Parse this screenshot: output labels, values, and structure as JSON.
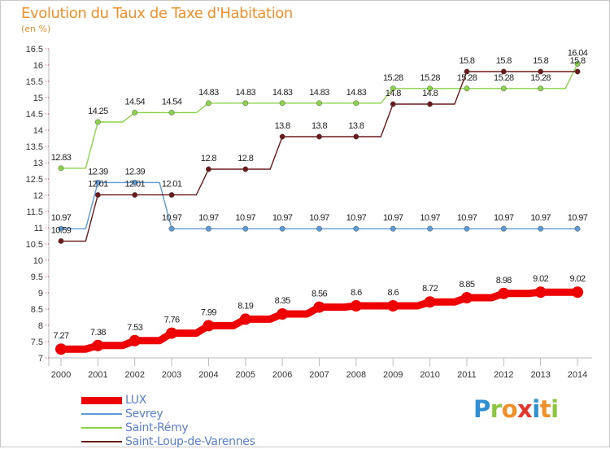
{
  "title": "Evolution du Taux de Taxe d'Habitation",
  "unit": "(en %)",
  "brand": {
    "letters": [
      "P",
      "r",
      "o",
      "x",
      "i",
      "t",
      "i"
    ],
    "colors": [
      "#2f8fd0",
      "#8cc63f",
      "#f0902a",
      "#e0362c",
      "#2f8fd0",
      "#f0902a",
      "#8cc63f"
    ]
  },
  "chart_data": {
    "type": "line",
    "x": [
      "2000",
      "2001",
      "2002",
      "2003",
      "2004",
      "2005",
      "2006",
      "2007",
      "2008",
      "2009",
      "2010",
      "2011",
      "2012",
      "2013",
      "2014"
    ],
    "ylim": [
      7,
      16.5
    ],
    "yticks": [
      "7",
      "7.5",
      "8",
      "8.5",
      "9",
      "9.5",
      "10",
      "10.5",
      "11",
      "11.5",
      "12",
      "12.5",
      "13",
      "13.5",
      "14",
      "14.5",
      "15",
      "15.5",
      "16",
      "16.5"
    ],
    "grid": false,
    "legend_position": "bottom-left",
    "series": [
      {
        "name": "LUX",
        "color": "#ee0000",
        "values": [
          7.27,
          7.38,
          7.53,
          7.76,
          7.99,
          8.19,
          8.35,
          8.56,
          8.6,
          8.6,
          8.72,
          8.85,
          8.98,
          9.02,
          9.02
        ],
        "labels": [
          "7.27",
          "7.38",
          "7.53",
          "7.76",
          "7.99",
          "8.19",
          "8.35",
          "8.56",
          "8.6",
          "8.6",
          "8.72",
          "8.85",
          "8.98",
          "9.02",
          "9.02"
        ]
      },
      {
        "name": "Sevrey",
        "color": "#5b9bd5",
        "values": [
          10.97,
          12.39,
          12.39,
          10.97,
          10.97,
          10.97,
          10.97,
          10.97,
          10.97,
          10.97,
          10.97,
          10.97,
          10.97,
          10.97,
          10.97
        ],
        "labels": [
          "10.97",
          "12.39",
          "12.39",
          "10.97",
          "10.97",
          "10.97",
          "10.97",
          "10.97",
          "10.97",
          "10.97",
          "10.97",
          "10.97",
          "10.97",
          "10.97",
          "10.97"
        ]
      },
      {
        "name": "Saint-Rémy",
        "color": "#8cd24b",
        "values": [
          12.83,
          14.25,
          14.54,
          14.54,
          14.83,
          14.83,
          14.83,
          14.83,
          14.83,
          15.28,
          15.28,
          15.28,
          15.28,
          15.28,
          16.04
        ],
        "labels": [
          "12.83",
          "14.25",
          "14.54",
          "14.54",
          "14.83",
          "14.83",
          "14.83",
          "14.83",
          "14.83",
          "15.28",
          "15.28",
          "15.28",
          "15.28",
          "15.28",
          "16.04"
        ]
      },
      {
        "name": "Saint-Loup-de-Varennes",
        "color": "#6b1a1a",
        "values": [
          10.59,
          12.01,
          12.01,
          12.01,
          12.8,
          12.8,
          13.8,
          13.8,
          13.8,
          14.8,
          14.8,
          15.8,
          15.8,
          15.8,
          15.8
        ],
        "labels": [
          "10.59",
          "12.01",
          "12.01",
          "12.01",
          "12.8",
          "12.8",
          "13.8",
          "13.8",
          "13.8",
          "14.8",
          "14.8",
          "15.8",
          "15.8",
          "15.8",
          "15.8"
        ]
      }
    ]
  }
}
